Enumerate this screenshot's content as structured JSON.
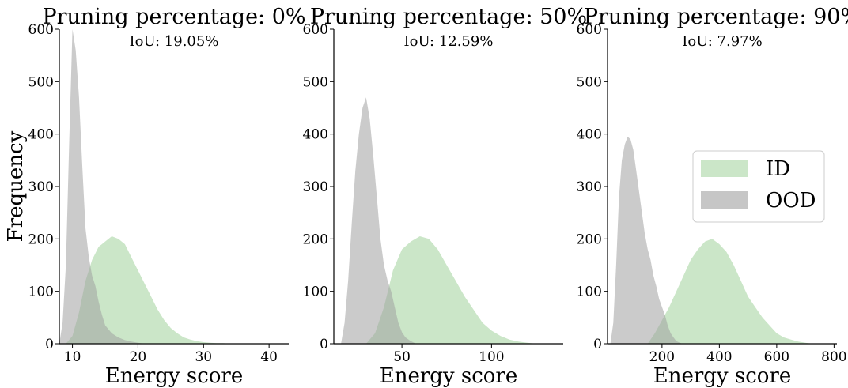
{
  "chart_data": [
    {
      "type": "area",
      "title": "Pruning percentage: 0%",
      "subtitle": "IoU: 19.05%",
      "xlabel": "Energy score",
      "ylabel": "Frequency",
      "xlim": [
        8,
        43
      ],
      "ylim": [
        0,
        600
      ],
      "xticks": [
        10,
        20,
        30,
        40
      ],
      "yticks": [
        0,
        100,
        200,
        300,
        400,
        500,
        600
      ],
      "series": [
        {
          "name": "ID",
          "color": "#a8d5a3",
          "x": [
            9,
            10,
            11,
            12,
            13,
            14,
            15,
            16,
            17,
            18,
            19,
            20,
            21,
            22,
            23,
            24,
            25,
            26,
            27,
            28,
            29,
            30,
            31,
            32,
            33,
            34
          ],
          "y": [
            0,
            15,
            60,
            120,
            160,
            185,
            195,
            205,
            200,
            190,
            165,
            140,
            115,
            90,
            65,
            45,
            30,
            20,
            12,
            8,
            5,
            3,
            2,
            1,
            1,
            0
          ]
        },
        {
          "name": "OOD",
          "color": "#a0a0a0",
          "x": [
            8,
            8.5,
            9,
            9.5,
            10,
            10.5,
            11,
            11.5,
            12,
            12.5,
            13,
            13.5,
            14,
            14.5,
            15,
            16,
            17,
            18,
            19,
            20,
            21
          ],
          "y": [
            0,
            40,
            150,
            380,
            600,
            560,
            470,
            340,
            220,
            165,
            130,
            110,
            80,
            55,
            35,
            20,
            12,
            7,
            4,
            2,
            0
          ]
        }
      ]
    },
    {
      "type": "area",
      "title": "Pruning percentage: 50%",
      "subtitle": "IoU: 12.59%",
      "xlabel": "Energy score",
      "xlim": [
        12,
        140
      ],
      "ylim": [
        0,
        600
      ],
      "xticks": [
        50,
        100
      ],
      "yticks": [
        0,
        100,
        200,
        300,
        400,
        500,
        600
      ],
      "series": [
        {
          "name": "ID",
          "color": "#a8d5a3",
          "x": [
            30,
            35,
            40,
            45,
            50,
            55,
            60,
            65,
            70,
            75,
            80,
            85,
            90,
            95,
            100,
            105,
            110,
            115,
            120,
            125
          ],
          "y": [
            0,
            20,
            70,
            140,
            180,
            195,
            205,
            200,
            180,
            150,
            120,
            90,
            65,
            40,
            25,
            15,
            8,
            4,
            2,
            0
          ]
        },
        {
          "name": "OOD",
          "color": "#a0a0a0",
          "x": [
            16,
            18,
            20,
            22,
            24,
            26,
            28,
            30,
            32,
            34,
            36,
            38,
            40,
            42,
            44,
            46,
            48,
            50,
            52,
            55,
            58
          ],
          "y": [
            0,
            40,
            120,
            230,
            330,
            400,
            450,
            470,
            430,
            360,
            280,
            200,
            150,
            120,
            100,
            70,
            40,
            22,
            12,
            5,
            0
          ]
        }
      ]
    },
    {
      "type": "area",
      "title": "Pruning percentage: 90%",
      "subtitle": "IoU: 7.97%",
      "xlabel": "Energy score",
      "xlim": [
        10,
        810
      ],
      "ylim": [
        0,
        600
      ],
      "xticks": [
        200,
        400,
        600,
        800
      ],
      "yticks": [
        0,
        100,
        200,
        300,
        400,
        500,
        600
      ],
      "legend": {
        "position": "right",
        "entries": [
          "ID",
          "OOD"
        ]
      },
      "series": [
        {
          "name": "ID",
          "color": "#a8d5a3",
          "x": [
            150,
            175,
            200,
            225,
            250,
            275,
            300,
            325,
            350,
            375,
            400,
            425,
            450,
            475,
            500,
            525,
            550,
            575,
            600,
            625,
            650,
            675,
            700,
            725
          ],
          "y": [
            0,
            20,
            45,
            70,
            100,
            130,
            160,
            180,
            195,
            200,
            190,
            175,
            150,
            120,
            90,
            70,
            50,
            35,
            20,
            12,
            8,
            4,
            2,
            0
          ]
        },
        {
          "name": "OOD",
          "color": "#a0a0a0",
          "x": [
            20,
            30,
            40,
            50,
            60,
            70,
            80,
            90,
            100,
            110,
            120,
            130,
            140,
            150,
            160,
            170,
            180,
            190,
            200,
            210,
            220,
            230,
            240,
            250,
            270
          ],
          "y": [
            0,
            40,
            150,
            280,
            350,
            380,
            395,
            390,
            370,
            330,
            290,
            250,
            210,
            180,
            160,
            130,
            110,
            85,
            70,
            55,
            35,
            20,
            12,
            5,
            0
          ]
        }
      ]
    }
  ]
}
